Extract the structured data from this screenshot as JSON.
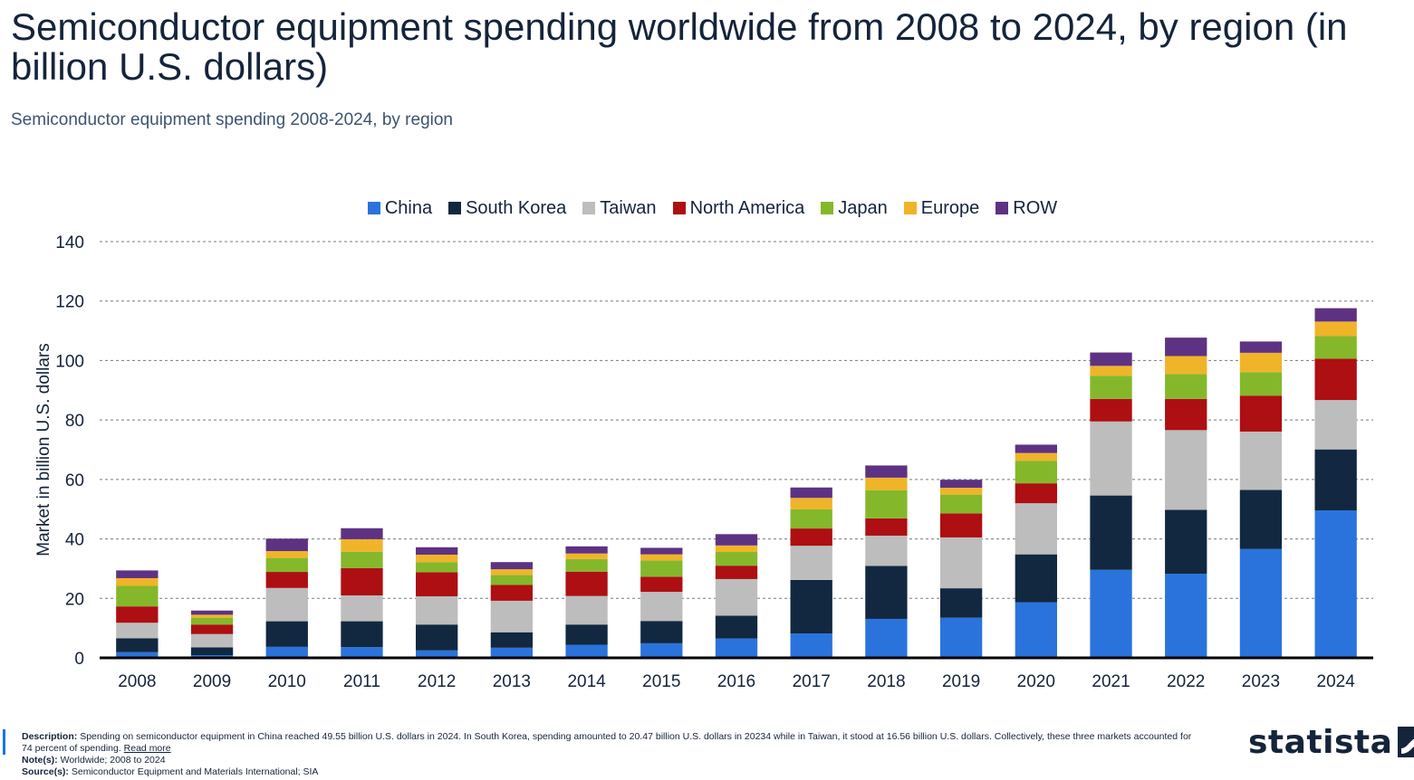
{
  "header": {
    "title": "Semiconductor equipment spending worldwide from 2008 to 2024, by region (in billion U.S. dollars)",
    "subtitle": "Semiconductor equipment spending 2008-2024, by region"
  },
  "legend": [
    {
      "name": "China",
      "color": "#2a73dc"
    },
    {
      "name": "South Korea",
      "color": "#112840"
    },
    {
      "name": "Taiwan",
      "color": "#bdbdbd"
    },
    {
      "name": "North America",
      "color": "#ad0f12"
    },
    {
      "name": "Japan",
      "color": "#84b82a"
    },
    {
      "name": "Europe",
      "color": "#f0b429"
    },
    {
      "name": "ROW",
      "color": "#5e3283"
    }
  ],
  "chart_data": {
    "type": "bar",
    "stacked": true,
    "ylabel": "Market in billion U.S. dollars",
    "xlabel": "",
    "ylim": [
      0,
      140
    ],
    "yticks": [
      0,
      20,
      40,
      60,
      80,
      100,
      120,
      140
    ],
    "grid": true,
    "legend_position": "top",
    "categories": [
      "2008",
      "2009",
      "2010",
      "2011",
      "2012",
      "2013",
      "2014",
      "2015",
      "2016",
      "2017",
      "2018",
      "2019",
      "2020",
      "2021",
      "2022",
      "2023",
      "2024"
    ],
    "series": [
      {
        "name": "China",
        "color": "#2a73dc",
        "values": [
          1.9,
          0.9,
          3.7,
          3.6,
          2.5,
          3.4,
          4.4,
          4.9,
          6.5,
          8.2,
          13.1,
          13.5,
          18.7,
          29.6,
          28.3,
          36.6,
          49.6
        ]
      },
      {
        "name": "South Korea",
        "color": "#112840",
        "values": [
          4.7,
          2.6,
          8.6,
          8.7,
          8.7,
          5.2,
          6.8,
          7.5,
          7.7,
          18.0,
          17.8,
          9.9,
          16.1,
          25.0,
          21.5,
          19.9,
          20.5
        ]
      },
      {
        "name": "Taiwan",
        "color": "#bdbdbd",
        "values": [
          5.2,
          4.5,
          11.2,
          8.7,
          9.5,
          10.6,
          9.6,
          9.8,
          12.3,
          11.5,
          10.2,
          17.1,
          17.2,
          24.9,
          26.8,
          19.6,
          16.6
        ]
      },
      {
        "name": "North America",
        "color": "#ad0f12",
        "values": [
          5.5,
          3.2,
          5.4,
          9.2,
          8.1,
          5.3,
          8.2,
          5.1,
          4.5,
          5.8,
          5.8,
          8.1,
          6.7,
          7.6,
          10.5,
          12.1,
          13.9
        ]
      },
      {
        "name": "Japan",
        "color": "#84b82a",
        "values": [
          6.9,
          2.3,
          4.7,
          5.5,
          3.4,
          3.4,
          4.2,
          5.5,
          4.6,
          6.5,
          9.5,
          6.3,
          7.6,
          7.8,
          8.3,
          7.9,
          7.6
        ]
      },
      {
        "name": "Europe",
        "color": "#f0b429",
        "values": [
          2.6,
          1.0,
          2.3,
          4.2,
          2.5,
          1.9,
          1.9,
          2.0,
          2.2,
          3.8,
          4.2,
          2.3,
          2.6,
          3.3,
          6.1,
          6.5,
          4.9
        ]
      },
      {
        "name": "ROW",
        "color": "#5e3283",
        "values": [
          2.6,
          1.4,
          4.2,
          3.7,
          2.5,
          2.4,
          2.4,
          2.2,
          3.8,
          3.5,
          4.1,
          2.7,
          2.8,
          4.5,
          6.2,
          3.8,
          4.5
        ]
      }
    ]
  },
  "footer": {
    "description_label": "Description:",
    "description": "Spending on semiconductor equipment in China reached 49.55 billion U.S. dollars in 2024. In South Korea, spending amounted to 20.47 billion U.S. dollars in 20234 while in Taiwan, it stood at 16.56 billion U.S. dollars. Collectively, these three markets accounted for 74 percent of spending.",
    "read_more": "Read more",
    "notes_label": "Note(s):",
    "notes": "Worldwide; 2008 to 2024",
    "source_label": "Source(s):",
    "source": "Semiconductor Equipment and Materials International; SIA"
  },
  "logo": {
    "text": "statista"
  }
}
